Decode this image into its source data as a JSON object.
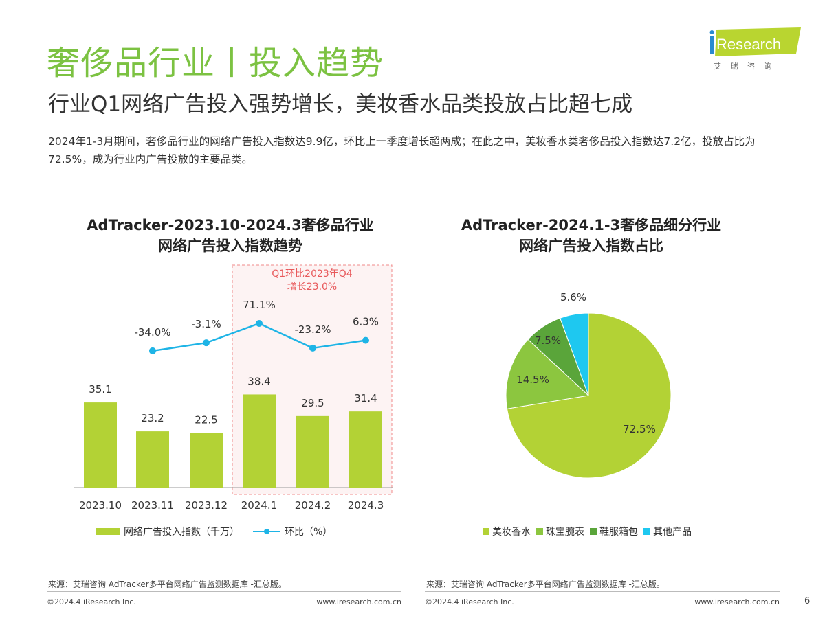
{
  "header": {
    "title": "奢侈品行业丨投入趋势",
    "subtitle": "行业Q1网络广告投入强势增长，美妆香水品类投放占比超七成",
    "description": "2024年1-3月期间，奢侈品行业的网络广告投入指数达9.9亿，环比上一季度增长超两成；在此之中，美妆香水类奢侈品投入指数达7.2亿，投放占比为72.5%，成为行业内广告投放的主要品类。",
    "logo_text": "iResearch",
    "logo_sub": "艾 瑞 咨 询"
  },
  "colors": {
    "accent": "#7cc242",
    "bar": "#b3d235",
    "line": "#1eb4e6",
    "highlight": "#f08a8a"
  },
  "chart_data": [
    {
      "type": "bar+line",
      "title": "AdTracker-2023.10-2024.3奢侈品行业\n网络广告投入指数趋势",
      "title_lines": [
        "AdTracker-2023.10-2024.3奢侈品行业",
        "网络广告投入指数趋势"
      ],
      "categories": [
        "2023.10",
        "2023.11",
        "2023.12",
        "2024.1",
        "2024.2",
        "2024.3"
      ],
      "series": [
        {
          "name": "网络广告投入指数（千万）",
          "type": "bar",
          "values": [
            35.1,
            23.2,
            22.5,
            38.4,
            29.5,
            31.4
          ],
          "labels": [
            "35.1",
            "23.2",
            "22.5",
            "38.4",
            "29.5",
            "31.4"
          ]
        },
        {
          "name": "环比（%）",
          "type": "line",
          "values": [
            null,
            -34.0,
            -3.1,
            71.1,
            -23.2,
            6.3
          ],
          "labels": [
            "",
            "-34.0%",
            "-3.1%",
            "71.1%",
            "-23.2%",
            "6.3%"
          ]
        }
      ],
      "annotation": [
        "Q1环比2023年Q4",
        "增长23.0%"
      ],
      "legend": "bottom"
    },
    {
      "type": "pie",
      "title_lines": [
        "AdTracker-2024.1-3奢侈品细分行业",
        "网络广告投入指数占比"
      ],
      "slices": [
        {
          "name": "美妆香水",
          "value": 72.5,
          "label": "72.5%",
          "color": "#b3d235"
        },
        {
          "name": "珠宝腕表",
          "value": 14.5,
          "label": "14.5%",
          "color": "#8cc63f"
        },
        {
          "name": "鞋服箱包",
          "value": 7.5,
          "label": "7.5%",
          "color": "#5aa53a"
        },
        {
          "name": "其他产品",
          "value": 5.6,
          "label": "5.6%",
          "color": "#1ec8f0"
        }
      ],
      "legend": "bottom"
    }
  ],
  "footer": {
    "source": "来源：艾瑞咨询 AdTracker多平台网络广告监测数据库 -汇总版。",
    "copyright": "©2024.4 iResearch Inc.",
    "url": "www.iresearch.com.cn",
    "page": "6"
  }
}
